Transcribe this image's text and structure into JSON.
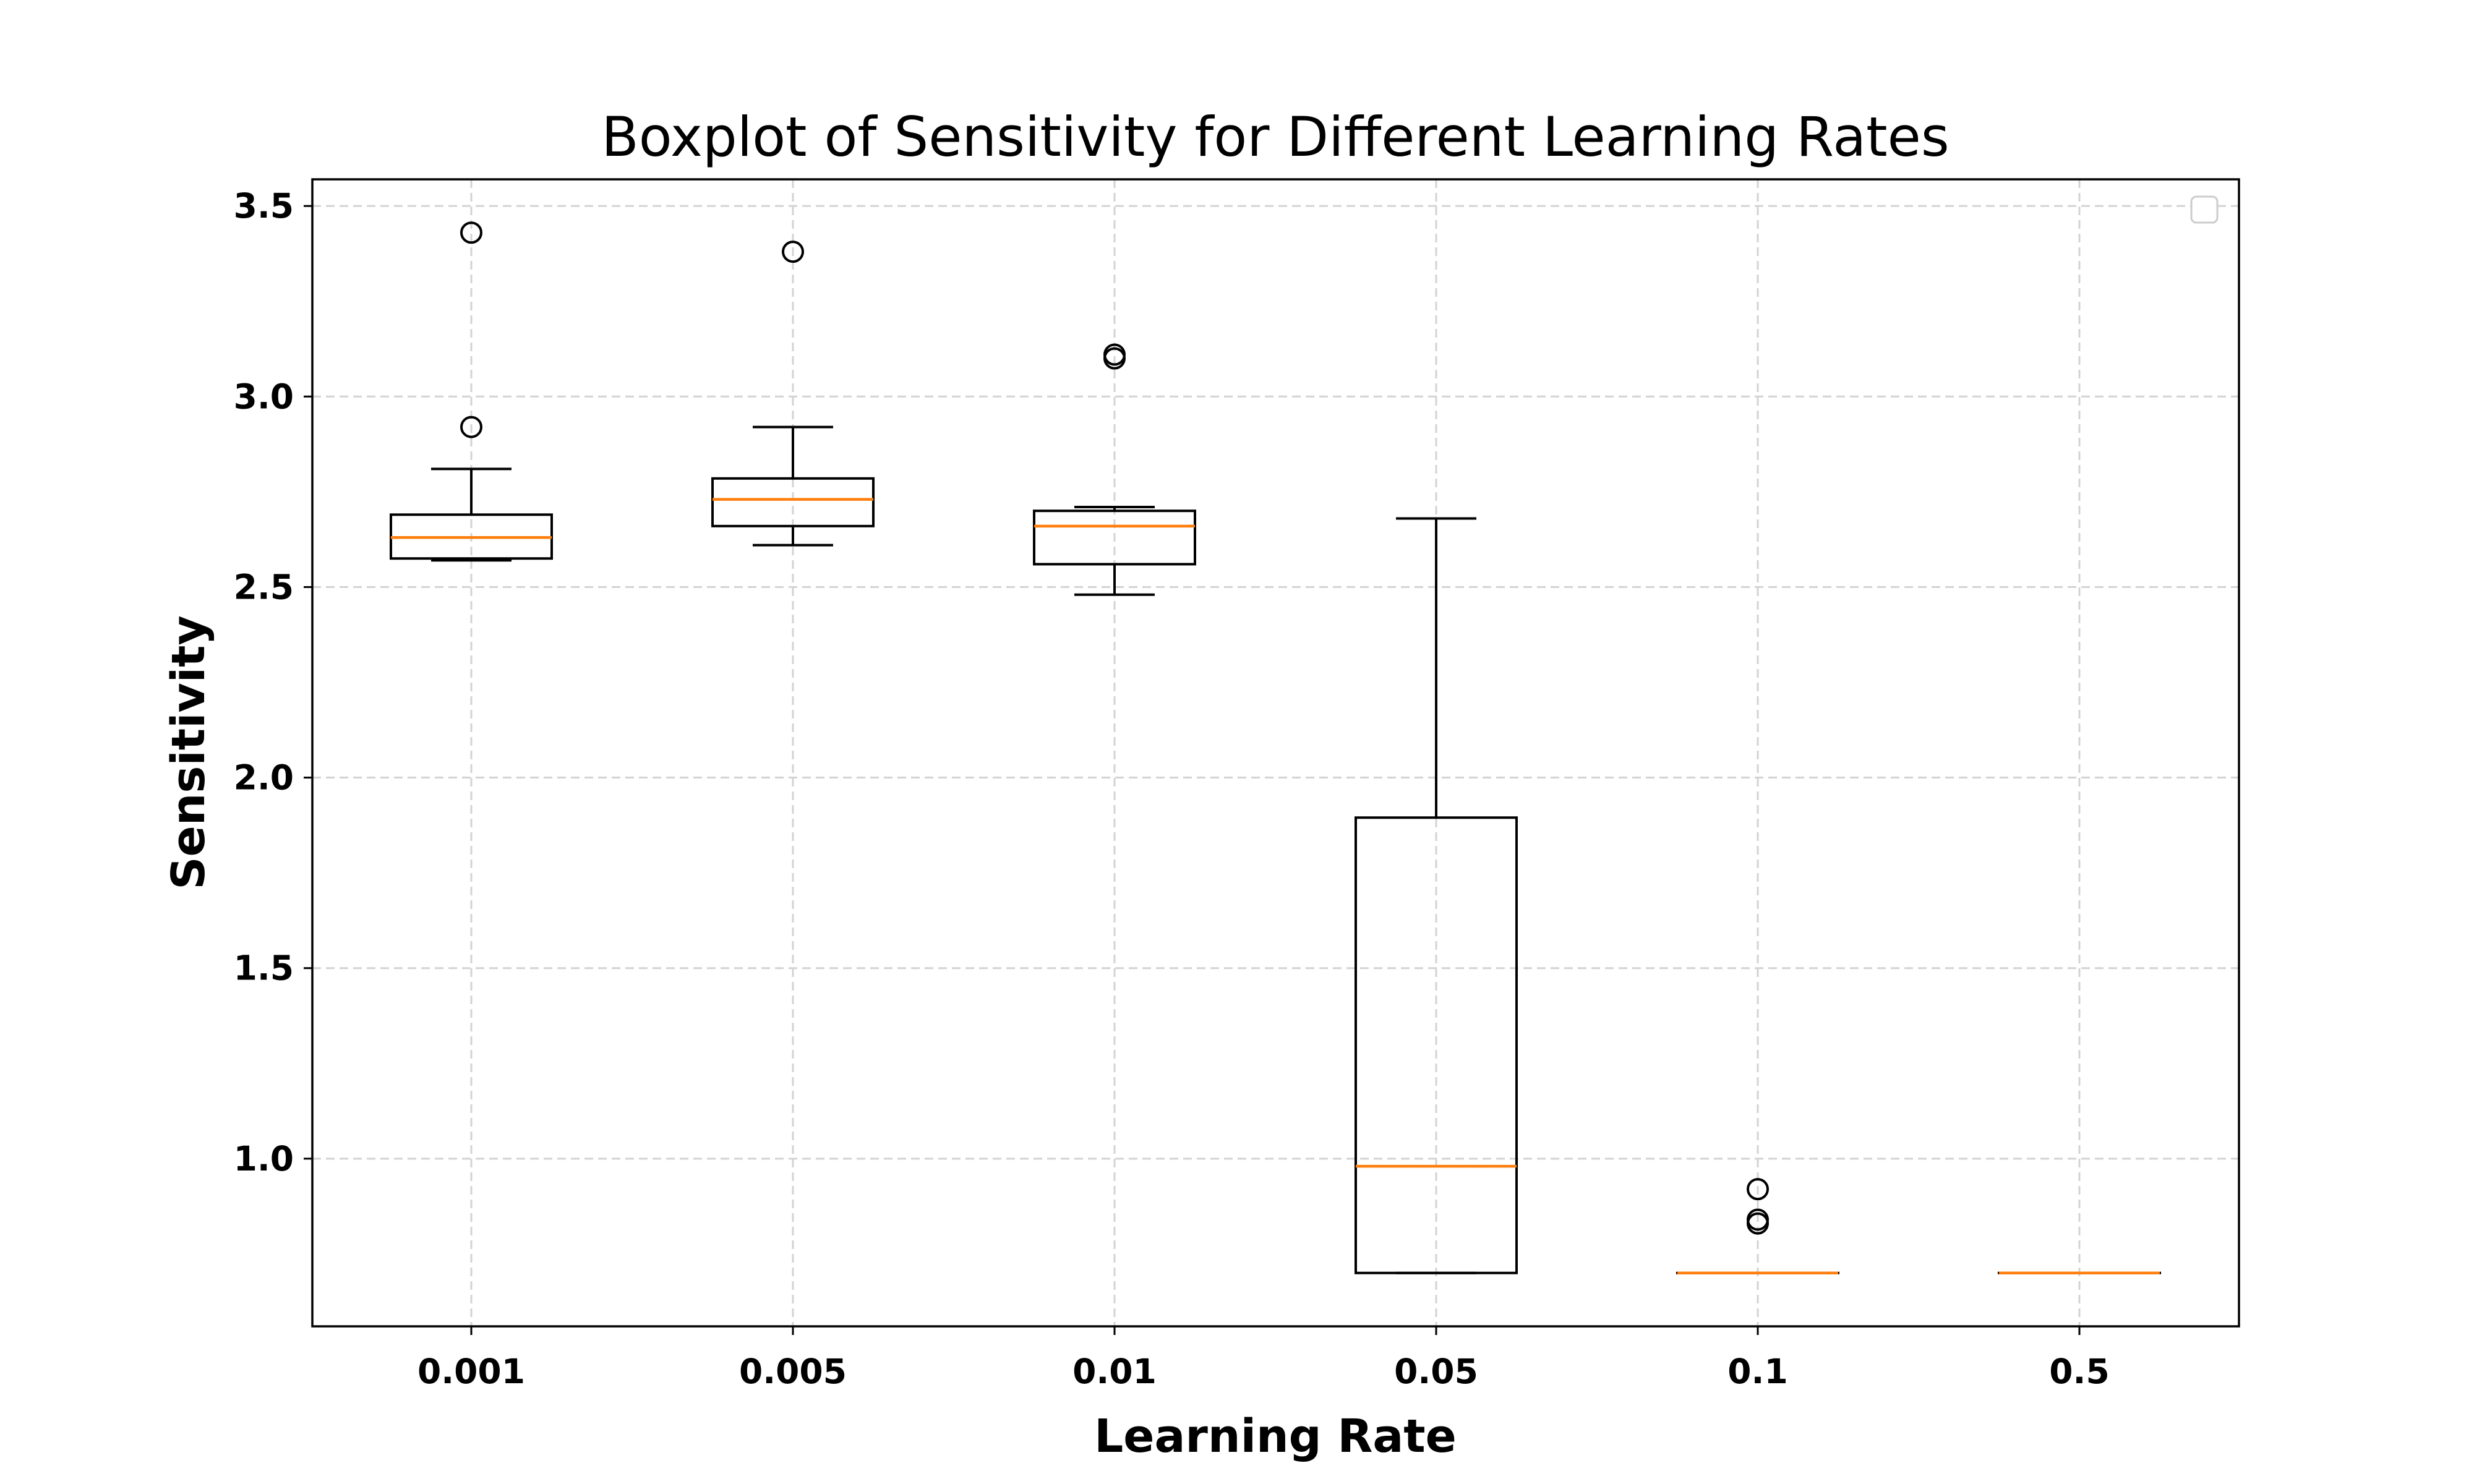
{
  "chart_data": {
    "type": "boxplot",
    "title": "Boxplot of Sensitivity for Different Learning Rates",
    "xlabel": "Learning Rate",
    "ylabel": "Sensitivity",
    "categories": [
      "0.001",
      "0.005",
      "0.01",
      "0.05",
      "0.1",
      "0.5"
    ],
    "ylim": [
      0.56,
      3.57
    ],
    "yticks": [
      1.0,
      1.5,
      2.0,
      2.5,
      3.0,
      3.5
    ],
    "ytick_labels": [
      "1.0",
      "1.5",
      "2.0",
      "2.5",
      "3.0",
      "3.5"
    ],
    "grid": true,
    "legend": {
      "placement": "top-right",
      "entries": []
    },
    "boxes": [
      {
        "category": "0.001",
        "whisker_low": 2.57,
        "q1": 2.575,
        "median": 2.63,
        "q3": 2.69,
        "whisker_high": 2.81,
        "outliers": [
          2.92,
          3.43
        ]
      },
      {
        "category": "0.005",
        "whisker_low": 2.61,
        "q1": 2.66,
        "median": 2.73,
        "q3": 2.785,
        "whisker_high": 2.92,
        "outliers": [
          3.38
        ]
      },
      {
        "category": "0.01",
        "whisker_low": 2.48,
        "q1": 2.56,
        "median": 2.66,
        "q3": 2.7,
        "whisker_high": 2.71,
        "outliers": [
          3.1,
          3.11
        ]
      },
      {
        "category": "0.05",
        "whisker_low": 0.7,
        "q1": 0.7,
        "median": 0.98,
        "q3": 1.895,
        "whisker_high": 2.68,
        "outliers": []
      },
      {
        "category": "0.1",
        "whisker_low": 0.7,
        "q1": 0.7,
        "median": 0.7,
        "q3": 0.7,
        "whisker_high": 0.7,
        "outliers": [
          0.83,
          0.84,
          0.92
        ]
      },
      {
        "category": "0.5",
        "whisker_low": 0.7,
        "q1": 0.7,
        "median": 0.7,
        "q3": 0.7,
        "whisker_high": 0.7,
        "outliers": []
      }
    ],
    "colors": {
      "box": "#000000",
      "median": "#ff7f0e",
      "grid": "#d3d3d3"
    }
  }
}
